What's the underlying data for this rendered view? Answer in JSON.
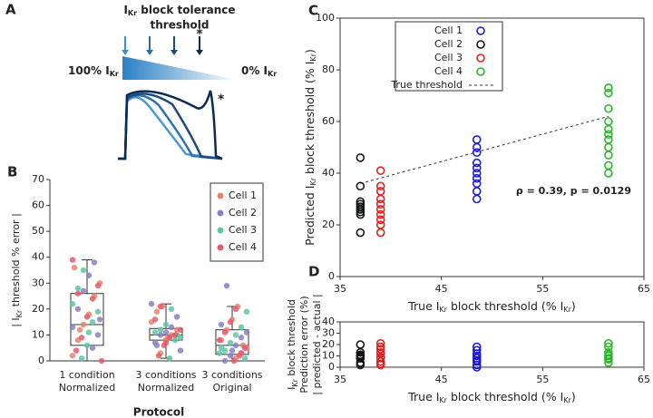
{
  "diagram": {
    "label": "A",
    "title": [
      "I",
      "Kr",
      " block tolerance"
    ],
    "title2": "threshold",
    "asterisk": "*",
    "left_label": [
      "100% I",
      "Kr"
    ],
    "right_label": [
      "0% I",
      "Kr"
    ],
    "trace_asterisk": "*"
  },
  "chart_data": [
    {
      "type": "box",
      "label": "B",
      "categories": [
        [
          "1 condition",
          "Normalized"
        ],
        [
          "3 conditions",
          "Normalized"
        ],
        [
          "3 conditions",
          "Original"
        ]
      ],
      "x_label": "Protocol",
      "y_label": [
        "| I",
        "Kr",
        " threshold % error |"
      ],
      "ylim": [
        0,
        70
      ],
      "yticks": [
        0,
        10,
        20,
        30,
        40,
        50,
        60,
        70
      ],
      "boxes": [
        {
          "min": 0,
          "q1": 6,
          "median": 14,
          "q3": 26,
          "max": 39
        },
        {
          "min": 1,
          "q1": 8,
          "median": 10,
          "q3": 12.5,
          "max": 22
        },
        {
          "min": 0,
          "q1": 2.5,
          "median": 6,
          "q3": 12,
          "max": 21
        }
      ],
      "series": [
        {
          "name": "Cell 1",
          "color": "#e8846f",
          "values": [
            [
              2,
              8,
              14,
              18,
              25,
              30,
              36,
              12
            ],
            [
              3,
              8,
              10,
              12,
              15,
              19,
              21,
              9
            ],
            [
              1,
              3,
              5,
              8,
              12,
              16,
              21,
              6
            ]
          ]
        },
        {
          "name": "Cell 2",
          "color": "#8a7fc0",
          "values": [
            [
              5,
              10,
              13,
              20,
              27,
              33,
              38,
              16
            ],
            [
              4,
              7,
              10,
              11,
              13,
              17,
              22,
              6
            ],
            [
              0,
              2,
              6,
              9,
              11,
              14,
              29,
              4
            ]
          ]
        },
        {
          "name": "Cell 3",
          "color": "#5cc8a0",
          "values": [
            [
              1,
              6,
              15,
              19,
              22,
              28,
              35,
              11
            ],
            [
              1,
              8,
              9,
              11,
              12,
              14,
              20,
              10
            ],
            [
              1,
              3,
              4,
              7,
              10,
              13,
              19,
              5
            ]
          ]
        },
        {
          "name": "Cell 4",
          "color": "#e8596b",
          "values": [
            [
              0,
              4,
              9,
              17,
              24,
              29,
              39,
              26
            ],
            [
              2,
              6,
              9,
              10,
              12,
              16,
              21,
              7
            ],
            [
              0,
              2,
              5,
              8,
              11,
              15,
              20,
              3
            ]
          ]
        }
      ]
    },
    {
      "type": "scatter",
      "label": "C",
      "x_label": [
        "True I",
        "Kr",
        " block threshold (% I",
        "Kr",
        ")"
      ],
      "y_label": [
        "Predicted I",
        "Kr",
        " block threshold (% I",
        "Kr",
        ")"
      ],
      "xlim": [
        35,
        65
      ],
      "xticks": [
        35,
        45,
        55,
        65
      ],
      "ylim": [
        0,
        100
      ],
      "yticks": [
        0,
        20,
        40,
        60,
        80,
        100
      ],
      "annotation": "ρ = 0.39, p = 0.0129",
      "series": [
        {
          "name": "Cell 1",
          "color": "#1a1ad6",
          "x": 48.5,
          "values": [
            30,
            33,
            36,
            38,
            40,
            42,
            44,
            48,
            50,
            53
          ]
        },
        {
          "name": "Cell 2",
          "color": "#111111",
          "x": 37,
          "values": [
            17,
            24,
            25,
            26,
            27,
            28,
            29,
            35,
            46
          ]
        },
        {
          "name": "Cell 3",
          "color": "#e0201c",
          "x": 39,
          "values": [
            17,
            20,
            22,
            24,
            26,
            28,
            30,
            33,
            35,
            41
          ]
        },
        {
          "name": "Cell 4",
          "color": "#2cb52c",
          "x": 61.5,
          "values": [
            40,
            43,
            47,
            50,
            53,
            55,
            57,
            60,
            65,
            71,
            73
          ]
        }
      ],
      "true_threshold": {
        "name": "True threshold",
        "x": [
          37,
          61.5
        ],
        "y": [
          36,
          62
        ]
      }
    },
    {
      "type": "scatter",
      "label": "D",
      "x_label": [
        "True I",
        "Kr",
        " block threshold (% I",
        "Kr",
        ")"
      ],
      "y_label_lines": [
        [
          "I",
          "Kr",
          " block threshold"
        ],
        "Prediction error (%)",
        "| predicted - actual |"
      ],
      "xlim": [
        35,
        65
      ],
      "xticks": [
        35,
        45,
        55,
        65
      ],
      "ylim": [
        0,
        40
      ],
      "yticks": [
        0,
        10,
        20,
        30,
        40
      ],
      "series": [
        {
          "name": "Cell 1",
          "color": "#1a1ad6",
          "x": 48.5,
          "values": [
            18,
            15,
            12,
            10,
            8,
            6,
            5,
            2,
            0
          ]
        },
        {
          "name": "Cell 2",
          "color": "#111111",
          "x": 37,
          "values": [
            20,
            13,
            11,
            10,
            9,
            8,
            8,
            4,
            2
          ]
        },
        {
          "name": "Cell 3",
          "color": "#e0201c",
          "x": 39,
          "values": [
            21,
            18,
            16,
            13,
            12,
            9,
            8,
            5,
            3,
            2
          ]
        },
        {
          "name": "Cell 4",
          "color": "#2cb52c",
          "x": 61.5,
          "values": [
            21,
            18,
            13,
            11,
            10,
            8,
            7,
            4
          ]
        }
      ]
    }
  ]
}
